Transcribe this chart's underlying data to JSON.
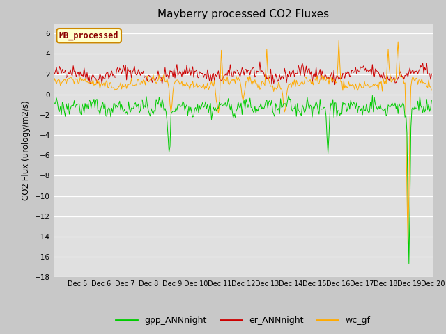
{
  "title": "Mayberry processed CO2 Fluxes",
  "ylabel": "CO2 Flux (urology/m2/s)",
  "ylim": [
    -18,
    7
  ],
  "yticks": [
    6,
    4,
    2,
    0,
    -2,
    -4,
    -6,
    -8,
    -10,
    -12,
    -14,
    -16,
    -18
  ],
  "fig_bg_color": "#c8c8c8",
  "plot_bg_color": "#e0e0e0",
  "legend_label": "MB_processed",
  "legend_box_facecolor": "#ffffcc",
  "legend_box_edgecolor": "#cc8800",
  "line_colors": {
    "gpp": "#00cc00",
    "er": "#cc0000",
    "wc": "#ffaa00"
  },
  "legend_entries": [
    "gpp_ANNnight",
    "er_ANNnight",
    "wc_gf"
  ],
  "n_points": 384,
  "start_day": 4,
  "end_day": 20,
  "seed": 42
}
